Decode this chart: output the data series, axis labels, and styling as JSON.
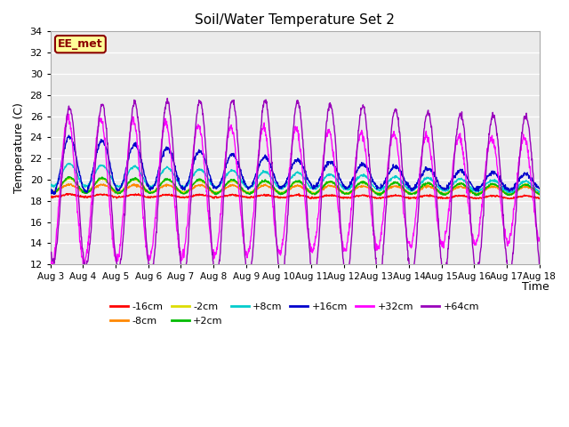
{
  "title": "Soil/Water Temperature Set 2",
  "xlabel": "Time",
  "ylabel": "Temperature (C)",
  "ylim": [
    12,
    34
  ],
  "yticks": [
    12,
    14,
    16,
    18,
    20,
    22,
    24,
    26,
    28,
    30,
    32,
    34
  ],
  "xtick_labels": [
    "Aug 3",
    "Aug 4",
    "Aug 5",
    "Aug 6",
    "Aug 7",
    "Aug 8",
    "Aug 9",
    "Aug 10",
    "Aug 11",
    "Aug 12",
    "Aug 13",
    "Aug 14",
    "Aug 15",
    "Aug 16",
    "Aug 17",
    "Aug 18"
  ],
  "series_keys": [
    "-16cm",
    "-8cm",
    "-2cm",
    "+2cm",
    "+8cm",
    "+16cm",
    "+32cm",
    "+64cm"
  ],
  "colors": {
    "-16cm": "#FF0000",
    "-8cm": "#FF8800",
    "-2cm": "#DDDD00",
    "+2cm": "#00BB00",
    "+8cm": "#00CCCC",
    "+16cm": "#0000CC",
    "+32cm": "#FF00FF",
    "+64cm": "#9900BB"
  },
  "watermark_text": "EE_met",
  "watermark_color": "#8B0000",
  "watermark_bg": "#FFFF99",
  "plot_bg": "#EBEBEB"
}
